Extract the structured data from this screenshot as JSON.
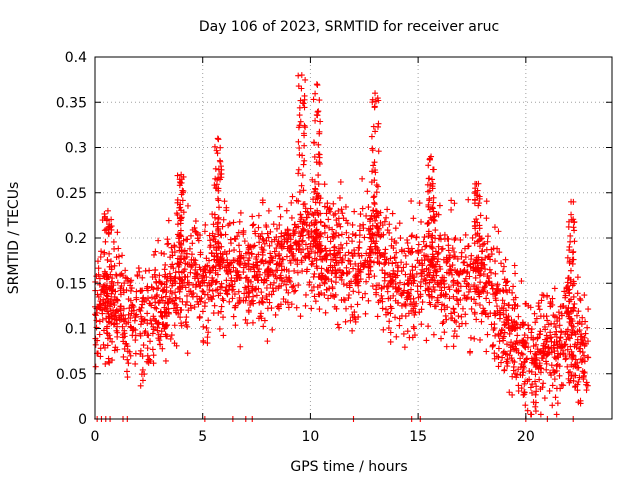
{
  "chart_data": {
    "type": "scatter",
    "title": "Day 106 of 2023, SRMTID for receiver aruc",
    "xlabel": "GPS time / hours",
    "ylabel": "SRMTID / TECUs",
    "xlim": [
      0,
      24
    ],
    "ylim": [
      0,
      0.4
    ],
    "xticks": [
      0,
      5,
      10,
      15,
      20
    ],
    "xtick_labels": [
      "0",
      "5",
      "10",
      "15",
      "20"
    ],
    "yticks": [
      0,
      0.05,
      0.1,
      0.15,
      0.2,
      0.25,
      0.3,
      0.35,
      0.4
    ],
    "ytick_labels": [
      "0",
      "0.05",
      "0.1",
      "0.15",
      "0.2",
      "0.25",
      "0.3",
      "0.35",
      "0.4"
    ],
    "grid": true,
    "marker": "plus",
    "color": "#ff0000",
    "trend": [
      [
        0.0,
        0.12
      ],
      [
        0.3,
        0.15
      ],
      [
        0.5,
        0.11
      ],
      [
        1.0,
        0.13
      ],
      [
        1.5,
        0.11
      ],
      [
        2.0,
        0.11
      ],
      [
        2.5,
        0.11
      ],
      [
        3.0,
        0.13
      ],
      [
        3.5,
        0.14
      ],
      [
        4.0,
        0.15
      ],
      [
        4.5,
        0.16
      ],
      [
        5.0,
        0.15
      ],
      [
        5.5,
        0.17
      ],
      [
        6.0,
        0.17
      ],
      [
        6.5,
        0.16
      ],
      [
        7.0,
        0.16
      ],
      [
        7.5,
        0.17
      ],
      [
        8.0,
        0.17
      ],
      [
        8.5,
        0.17
      ],
      [
        9.0,
        0.18
      ],
      [
        9.5,
        0.19
      ],
      [
        10.0,
        0.2
      ],
      [
        10.5,
        0.18
      ],
      [
        11.0,
        0.18
      ],
      [
        11.5,
        0.17
      ],
      [
        12.0,
        0.17
      ],
      [
        12.5,
        0.18
      ],
      [
        13.0,
        0.19
      ],
      [
        13.5,
        0.17
      ],
      [
        14.0,
        0.16
      ],
      [
        14.5,
        0.15
      ],
      [
        15.0,
        0.16
      ],
      [
        15.5,
        0.17
      ],
      [
        16.0,
        0.16
      ],
      [
        16.5,
        0.15
      ],
      [
        17.0,
        0.15
      ],
      [
        17.5,
        0.15
      ],
      [
        18.0,
        0.16
      ],
      [
        18.5,
        0.13
      ],
      [
        19.0,
        0.11
      ],
      [
        19.5,
        0.09
      ],
      [
        20.0,
        0.07
      ],
      [
        20.5,
        0.07
      ],
      [
        21.0,
        0.08
      ],
      [
        21.5,
        0.09
      ],
      [
        22.0,
        0.1
      ],
      [
        22.5,
        0.08
      ],
      [
        22.9,
        0.07
      ]
    ],
    "peaks": [
      {
        "x": 0.6,
        "y": 0.23
      },
      {
        "x": 4.0,
        "y": 0.27
      },
      {
        "x": 5.7,
        "y": 0.31
      },
      {
        "x": 9.6,
        "y": 0.38
      },
      {
        "x": 10.3,
        "y": 0.37
      },
      {
        "x": 13.0,
        "y": 0.36
      },
      {
        "x": 15.6,
        "y": 0.29
      },
      {
        "x": 17.8,
        "y": 0.26
      },
      {
        "x": 22.1,
        "y": 0.24
      }
    ],
    "zero_markers_x": [
      0.1,
      0.3,
      0.5,
      0.7,
      1.3,
      1.5,
      5.1,
      6.4,
      7.0,
      7.3,
      12.0,
      14.7,
      15.1,
      20.0,
      21.0,
      22.2
    ]
  }
}
